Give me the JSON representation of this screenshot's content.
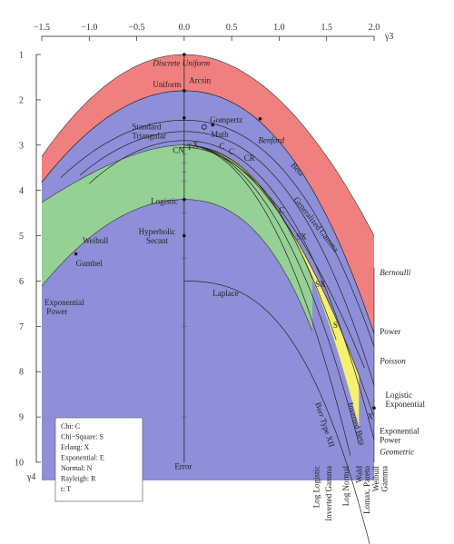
{
  "chart_data": {
    "type": "area",
    "xlabel": "γ3",
    "ylabel": "γ4",
    "xlim": [
      -1.5,
      2.0
    ],
    "ylim": [
      1,
      10
    ],
    "x_ticks": [
      "−1.5",
      "−1.0",
      "−0.5",
      "0.0",
      "0.5",
      "1.0",
      "1.5",
      "2.0"
    ],
    "x_tick_values": [
      -1.5,
      -1.0,
      -0.5,
      0.0,
      0.5,
      1.0,
      1.5,
      2.0
    ],
    "y_ticks": [
      "1",
      "2",
      "3",
      "4",
      "5",
      "6",
      "7",
      "8",
      "9",
      "10"
    ],
    "y_tick_values": [
      1,
      2,
      3,
      4,
      5,
      6,
      7,
      8,
      9,
      10
    ],
    "regions": [
      {
        "name": "Beta",
        "color": "#f08080"
      },
      {
        "name": "Generalized Gamma",
        "color": "#8e8fd8"
      },
      {
        "name": "Burr Type XII",
        "color": "#95d095"
      },
      {
        "name": "Inverted Beta",
        "color": "#f5f070"
      }
    ],
    "region_labels": [
      {
        "text": "Beta",
        "x": 1.12,
        "y": 3.45,
        "rotate": 48
      },
      {
        "text": "Generalized Gamma",
        "x": 1.15,
        "y": 4.2,
        "rotate": 52
      },
      {
        "text": "Burr Type XII",
        "x": 1.38,
        "y": 8.7,
        "rotate": 72
      },
      {
        "text": "Inverted Beta",
        "x": 1.72,
        "y": 8.7,
        "rotate": 73
      }
    ],
    "points": [
      {
        "name": "Discrete Uniform",
        "x": 0.0,
        "y": 1.0,
        "style": "italic",
        "lx": -0.33,
        "ly": 1.25
      },
      {
        "name": "Uniform",
        "x": 0.0,
        "y": 1.8,
        "style": "normal",
        "lx": -0.33,
        "ly": 1.72
      },
      {
        "name": "Arcsin",
        "x": 0.0,
        "y": 1.5,
        "style": "normal",
        "lx": 0.05,
        "ly": 1.63
      },
      {
        "name": "Standard",
        "x": 0.0,
        "y": 2.4,
        "style": "normal",
        "lx": -0.55,
        "ly": 2.65
      },
      {
        "name": "Triangular",
        "x": 0.0,
        "y": 2.4,
        "style": "normal",
        "lx": -0.55,
        "ly": 2.85
      },
      {
        "name": "Gompertz",
        "x": 0.3,
        "y": 2.55,
        "style": "normal",
        "lx": 0.27,
        "ly": 2.5
      },
      {
        "name": "Benford",
        "x": 0.8,
        "y": 2.42,
        "style": "italic",
        "lx": 0.78,
        "ly": 2.95
      },
      {
        "name": "Muth",
        "x": 0.21,
        "y": 2.6,
        "style": "normal",
        "lx": 0.28,
        "ly": 2.82
      },
      {
        "name": "Logistic",
        "x": 0.0,
        "y": 4.2,
        "style": "normal",
        "lx": -0.35,
        "ly": 4.3
      },
      {
        "name": "Hyperbolic",
        "x": 0.0,
        "y": 5.0,
        "style": "normal",
        "lx": -0.48,
        "ly": 4.97
      },
      {
        "name": "Secant",
        "x": 0.0,
        "y": 5.0,
        "style": "normal",
        "lx": -0.4,
        "ly": 5.17
      },
      {
        "name": "Weibull",
        "x": -1.05,
        "y": 5.1,
        "style": "normal",
        "lx": -1.07,
        "ly": 5.17
      },
      {
        "name": "Gumbel",
        "x": -1.14,
        "y": 5.4,
        "style": "normal",
        "lx": -1.14,
        "ly": 5.67
      },
      {
        "name": "Exponential",
        "x": -1.5,
        "y": 6.3,
        "style": "normal",
        "lx": -1.47,
        "ly": 6.53
      },
      {
        "name": "Power",
        "x": -1.5,
        "y": 6.3,
        "style": "normal",
        "lx": -1.45,
        "ly": 6.73
      },
      {
        "name": "Laplace",
        "x": 0.0,
        "y": 6.0,
        "style": "normal",
        "lx": 0.3,
        "ly": 6.33
      },
      {
        "name": "Error",
        "x": 0.0,
        "y": 10.0,
        "style": "normal",
        "lx": -0.1,
        "ly": 10.15
      },
      {
        "name": "Bernoulli",
        "x": 2.0,
        "y": 5.85,
        "style": "italic",
        "lx": 2.06,
        "ly": 5.87
      },
      {
        "name": "Power",
        "x": 2.0,
        "y": 7.0,
        "style": "normal",
        "lx": 2.06,
        "ly": 7.17
      },
      {
        "name": "Poisson",
        "x": 2.0,
        "y": 7.7,
        "style": "italic",
        "lx": 2.06,
        "ly": 7.83
      },
      {
        "name": "Logistic",
        "x": 2.0,
        "y": 8.8,
        "style": "normal",
        "lx": 2.12,
        "ly": 8.58
      },
      {
        "name": "Exponential",
        "x": 2.0,
        "y": 8.8,
        "style": "normal",
        "lx": 2.12,
        "ly": 8.78
      },
      {
        "name": "Exponential",
        "x": 2.0,
        "y": 9.4,
        "style": "normal",
        "lx": 2.06,
        "ly": 9.37
      },
      {
        "name": "Power",
        "x": 2.0,
        "y": 9.4,
        "style": "normal",
        "lx": 2.06,
        "ly": 9.57
      },
      {
        "name": "Geometric",
        "x": 2.0,
        "y": 9.8,
        "style": "italic",
        "lx": 2.06,
        "ly": 9.83
      },
      {
        "name": "CN",
        "x": 0.0,
        "y": 3.0,
        "style": "normal",
        "lx": -0.12,
        "ly": 3.17
      },
      {
        "name": "T",
        "x": 0.05,
        "y": 3.0,
        "style": "normal",
        "lx": 0.03,
        "ly": 3.1
      },
      {
        "name": "X",
        "x": 0.1,
        "y": 3.0,
        "style": "normal",
        "lx": 0.09,
        "ly": 3.05
      },
      {
        "name": "C",
        "x": 0.37,
        "y": 3.1,
        "style": "normal",
        "lx": 0.37,
        "ly": 3.08
      },
      {
        "name": "C",
        "x": 0.5,
        "y": 3.2,
        "style": "normal",
        "lx": 0.47,
        "ly": 3.2
      },
      {
        "name": "CR",
        "x": 0.63,
        "y": 3.25,
        "style": "normal",
        "lx": 0.63,
        "ly": 3.35
      },
      {
        "name": "C",
        "x": 1.0,
        "y": 4.3,
        "style": "normal",
        "lx": 1.0,
        "ly": 4.5
      },
      {
        "name": "SX",
        "x": 1.2,
        "y": 5.05,
        "style": "normal",
        "lx": 1.18,
        "ly": 5.08
      },
      {
        "name": "SX",
        "x": 1.4,
        "y": 6.1,
        "style": "normal",
        "lx": 1.38,
        "ly": 6.13
      },
      {
        "name": "S",
        "x": 1.6,
        "y": 7.0,
        "style": "normal",
        "lx": 1.57,
        "ly": 7.03
      },
      {
        "name": "X",
        "x": 2.0,
        "y": 9.0,
        "style": "normal",
        "lx": 1.93,
        "ly": 9.05
      }
    ],
    "bottom_labels": [
      {
        "text": "Log Logistic",
        "x": 1.42
      },
      {
        "text": "Inverted Gamma",
        "x": 1.55
      },
      {
        "text": "Log Normal",
        "x": 1.73
      },
      {
        "text": "Wald",
        "x": 1.87
      },
      {
        "text": "Lomax, Pareto",
        "x": 1.95
      },
      {
        "text": "Weibull",
        "x": 2.05
      },
      {
        "text": "Gamma",
        "x": 2.14
      }
    ]
  },
  "legend": {
    "items": [
      "Chi: C",
      "Chi−Square: S",
      "Erlang: X",
      "Exponential: E",
      "Normal: N",
      "Rayleigh: R",
      "t: T"
    ]
  },
  "colors": {
    "beta": "#f08080",
    "gengamma": "#8e8fd8",
    "burr": "#95d095",
    "invbeta": "#f5f070"
  }
}
